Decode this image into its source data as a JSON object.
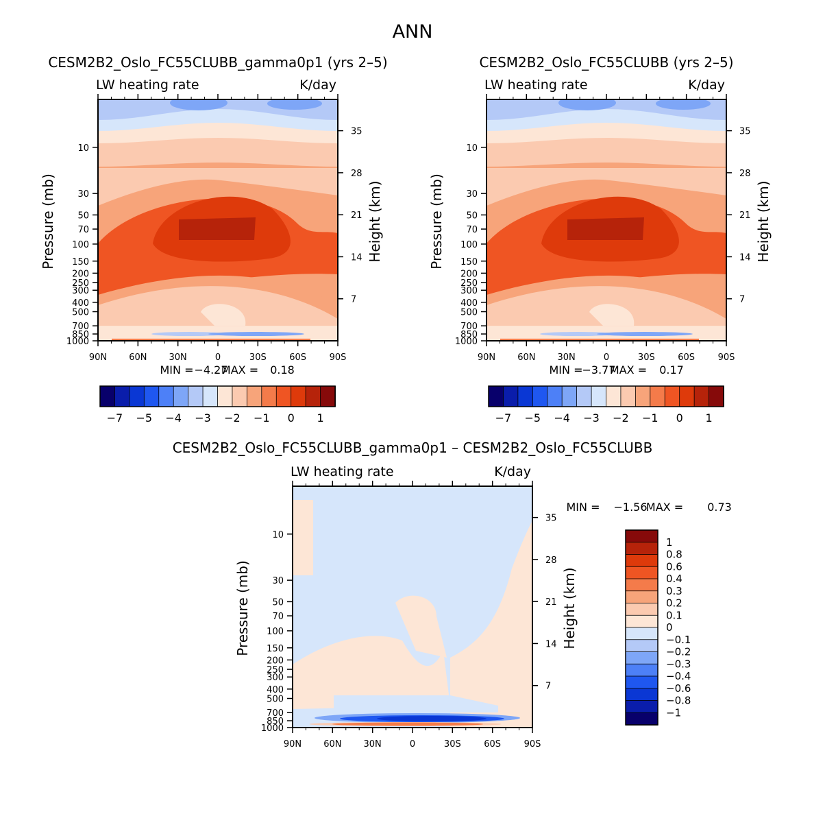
{
  "figure_title": "ANN",
  "chart_data": [
    {
      "type": "heatmap",
      "panel": "top-left",
      "title": "CESM2B2_Oslo_FC55CLUBB_gamma0p1 (yrs 2–5)",
      "variable": "LW heating rate",
      "units": "K/day",
      "ylabel": "Pressure (mb)",
      "ylabel_right": "Height (km)",
      "x_ticks": [
        "90N",
        "60N",
        "30N",
        "0",
        "30S",
        "60S",
        "90S"
      ],
      "x_values": [
        90,
        60,
        30,
        0,
        -30,
        -60,
        -90
      ],
      "y_ticks": [
        10,
        30,
        50,
        70,
        100,
        150,
        200,
        250,
        300,
        400,
        500,
        700,
        850,
        1000
      ],
      "y_right_ticks": [
        35,
        28,
        21,
        14,
        7
      ],
      "ylim": [
        3.2,
        1000
      ],
      "min_label": "MIN =",
      "min_value": "−4.27",
      "max_label": "MAX =",
      "max_value": "0.18",
      "levels": [
        -7,
        -6,
        -5,
        -4.5,
        -4,
        -3.5,
        -3,
        -2.5,
        -2,
        -1.5,
        -1,
        -0.5,
        0,
        0.5,
        1
      ],
      "colorbar_labels": [
        "−7",
        "−5",
        "−4",
        "−3",
        "−2",
        "−1",
        "0",
        "1"
      ],
      "colorbar_colors": [
        "#08006b",
        "#0a1dab",
        "#0a37d4",
        "#1f57f0",
        "#4d80f7",
        "#7ea6f7",
        "#b4c9f7",
        "#d6e6fb",
        "#fde6d6",
        "#fbcab0",
        "#f7a47a",
        "#f47b4a",
        "#ef5523",
        "#de3a0b",
        "#b6230a",
        "#860a0a"
      ]
    },
    {
      "type": "heatmap",
      "panel": "top-right",
      "title": "CESM2B2_Oslo_FC55CLUBB (yrs 2–5)",
      "variable": "LW heating rate",
      "units": "K/day",
      "ylabel": "Pressure (mb)",
      "ylabel_right": "Height (km)",
      "x_ticks": [
        "90N",
        "60N",
        "30N",
        "0",
        "30S",
        "60S",
        "90S"
      ],
      "x_values": [
        90,
        60,
        30,
        0,
        -30,
        -60,
        -90
      ],
      "y_ticks": [
        10,
        30,
        50,
        70,
        100,
        150,
        200,
        250,
        300,
        400,
        500,
        700,
        850,
        1000
      ],
      "y_right_ticks": [
        35,
        28,
        21,
        14,
        7
      ],
      "ylim": [
        3.2,
        1000
      ],
      "min_label": "MIN =",
      "min_value": "−3.77",
      "max_label": "MAX =",
      "max_value": "0.17",
      "levels": [
        -7,
        -6,
        -5,
        -4.5,
        -4,
        -3.5,
        -3,
        -2.5,
        -2,
        -1.5,
        -1,
        -0.5,
        0,
        0.5,
        1
      ],
      "colorbar_labels": [
        "−7",
        "−5",
        "−4",
        "−3",
        "−2",
        "−1",
        "0",
        "1"
      ],
      "colorbar_colors": [
        "#08006b",
        "#0a1dab",
        "#0a37d4",
        "#1f57f0",
        "#4d80f7",
        "#7ea6f7",
        "#b4c9f7",
        "#d6e6fb",
        "#fde6d6",
        "#fbcab0",
        "#f7a47a",
        "#f47b4a",
        "#ef5523",
        "#de3a0b",
        "#b6230a",
        "#860a0a"
      ]
    },
    {
      "type": "heatmap",
      "panel": "bottom",
      "title": "CESM2B2_Oslo_FC55CLUBB_gamma0p1 – CESM2B2_Oslo_FC55CLUBB",
      "variable": "LW heating rate",
      "units": "K/day",
      "ylabel": "Pressure (mb)",
      "ylabel_right": "Height (km)",
      "x_ticks": [
        "90N",
        "60N",
        "30N",
        "0",
        "30S",
        "60S",
        "90S"
      ],
      "x_values": [
        90,
        60,
        30,
        0,
        -30,
        -60,
        -90
      ],
      "y_ticks": [
        10,
        30,
        50,
        70,
        100,
        150,
        200,
        250,
        300,
        400,
        500,
        700,
        850,
        1000
      ],
      "y_right_ticks": [
        35,
        28,
        21,
        14,
        7
      ],
      "ylim": [
        3.2,
        1000
      ],
      "min_label": "MIN =",
      "min_value": "−1.56",
      "max_label": "MAX =",
      "max_value": "0.73",
      "colorbar_labels": [
        "1",
        "0.8",
        "0.6",
        "0.4",
        "0.3",
        "0.2",
        "0.1",
        "0",
        "−0.1",
        "−0.2",
        "−0.3",
        "−0.4",
        "−0.6",
        "−0.8",
        "−1"
      ],
      "colorbar_colors": [
        "#860a0a",
        "#b6230a",
        "#de3a0b",
        "#ef5523",
        "#f47b4a",
        "#f7a47a",
        "#fbcab0",
        "#fde6d6",
        "#d6e6fb",
        "#b4c9f7",
        "#7ea6f7",
        "#4d80f7",
        "#1f57f0",
        "#0a37d4",
        "#0a1dab",
        "#08006b"
      ]
    }
  ]
}
